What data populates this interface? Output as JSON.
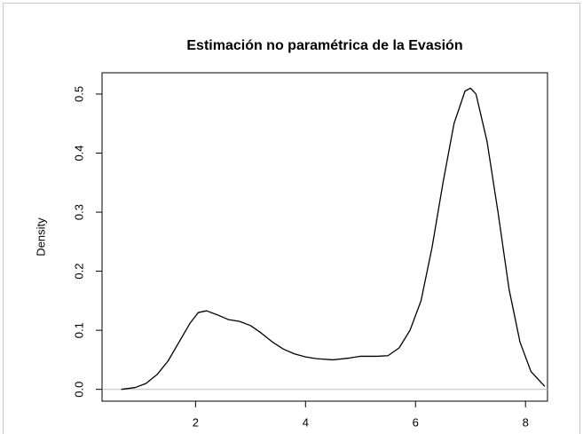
{
  "chart_data": {
    "type": "line",
    "title": "Estimación no paramétrica de la Evasión",
    "y_label": "Density",
    "x": [
      0.65,
      0.9,
      1.1,
      1.3,
      1.5,
      1.7,
      1.9,
      2.05,
      2.2,
      2.4,
      2.6,
      2.8,
      3.0,
      3.2,
      3.4,
      3.6,
      3.8,
      4.0,
      4.2,
      4.5,
      4.8,
      5.0,
      5.3,
      5.5,
      5.7,
      5.9,
      6.1,
      6.3,
      6.5,
      6.7,
      6.9,
      7.0,
      7.1,
      7.3,
      7.5,
      7.7,
      7.9,
      8.1,
      8.35
    ],
    "series": [
      {
        "name": "Density",
        "color": "#000000",
        "values": [
          0.0,
          0.003,
          0.01,
          0.025,
          0.048,
          0.08,
          0.112,
          0.13,
          0.133,
          0.126,
          0.118,
          0.115,
          0.108,
          0.095,
          0.08,
          0.068,
          0.06,
          0.055,
          0.052,
          0.05,
          0.053,
          0.056,
          0.056,
          0.057,
          0.07,
          0.1,
          0.15,
          0.24,
          0.35,
          0.45,
          0.505,
          0.51,
          0.5,
          0.42,
          0.3,
          0.17,
          0.08,
          0.03,
          0.005
        ]
      }
    ],
    "xlim": [
      0.3,
      8.4
    ],
    "ylim": [
      -0.02,
      0.536
    ],
    "xticks": [
      2,
      4,
      6,
      8
    ],
    "yticks": [
      {
        "value": 0,
        "label": "0.0"
      },
      0.1,
      0.2,
      0.3,
      0.4,
      0.5
    ],
    "zero_line_color": "#bebebe"
  }
}
